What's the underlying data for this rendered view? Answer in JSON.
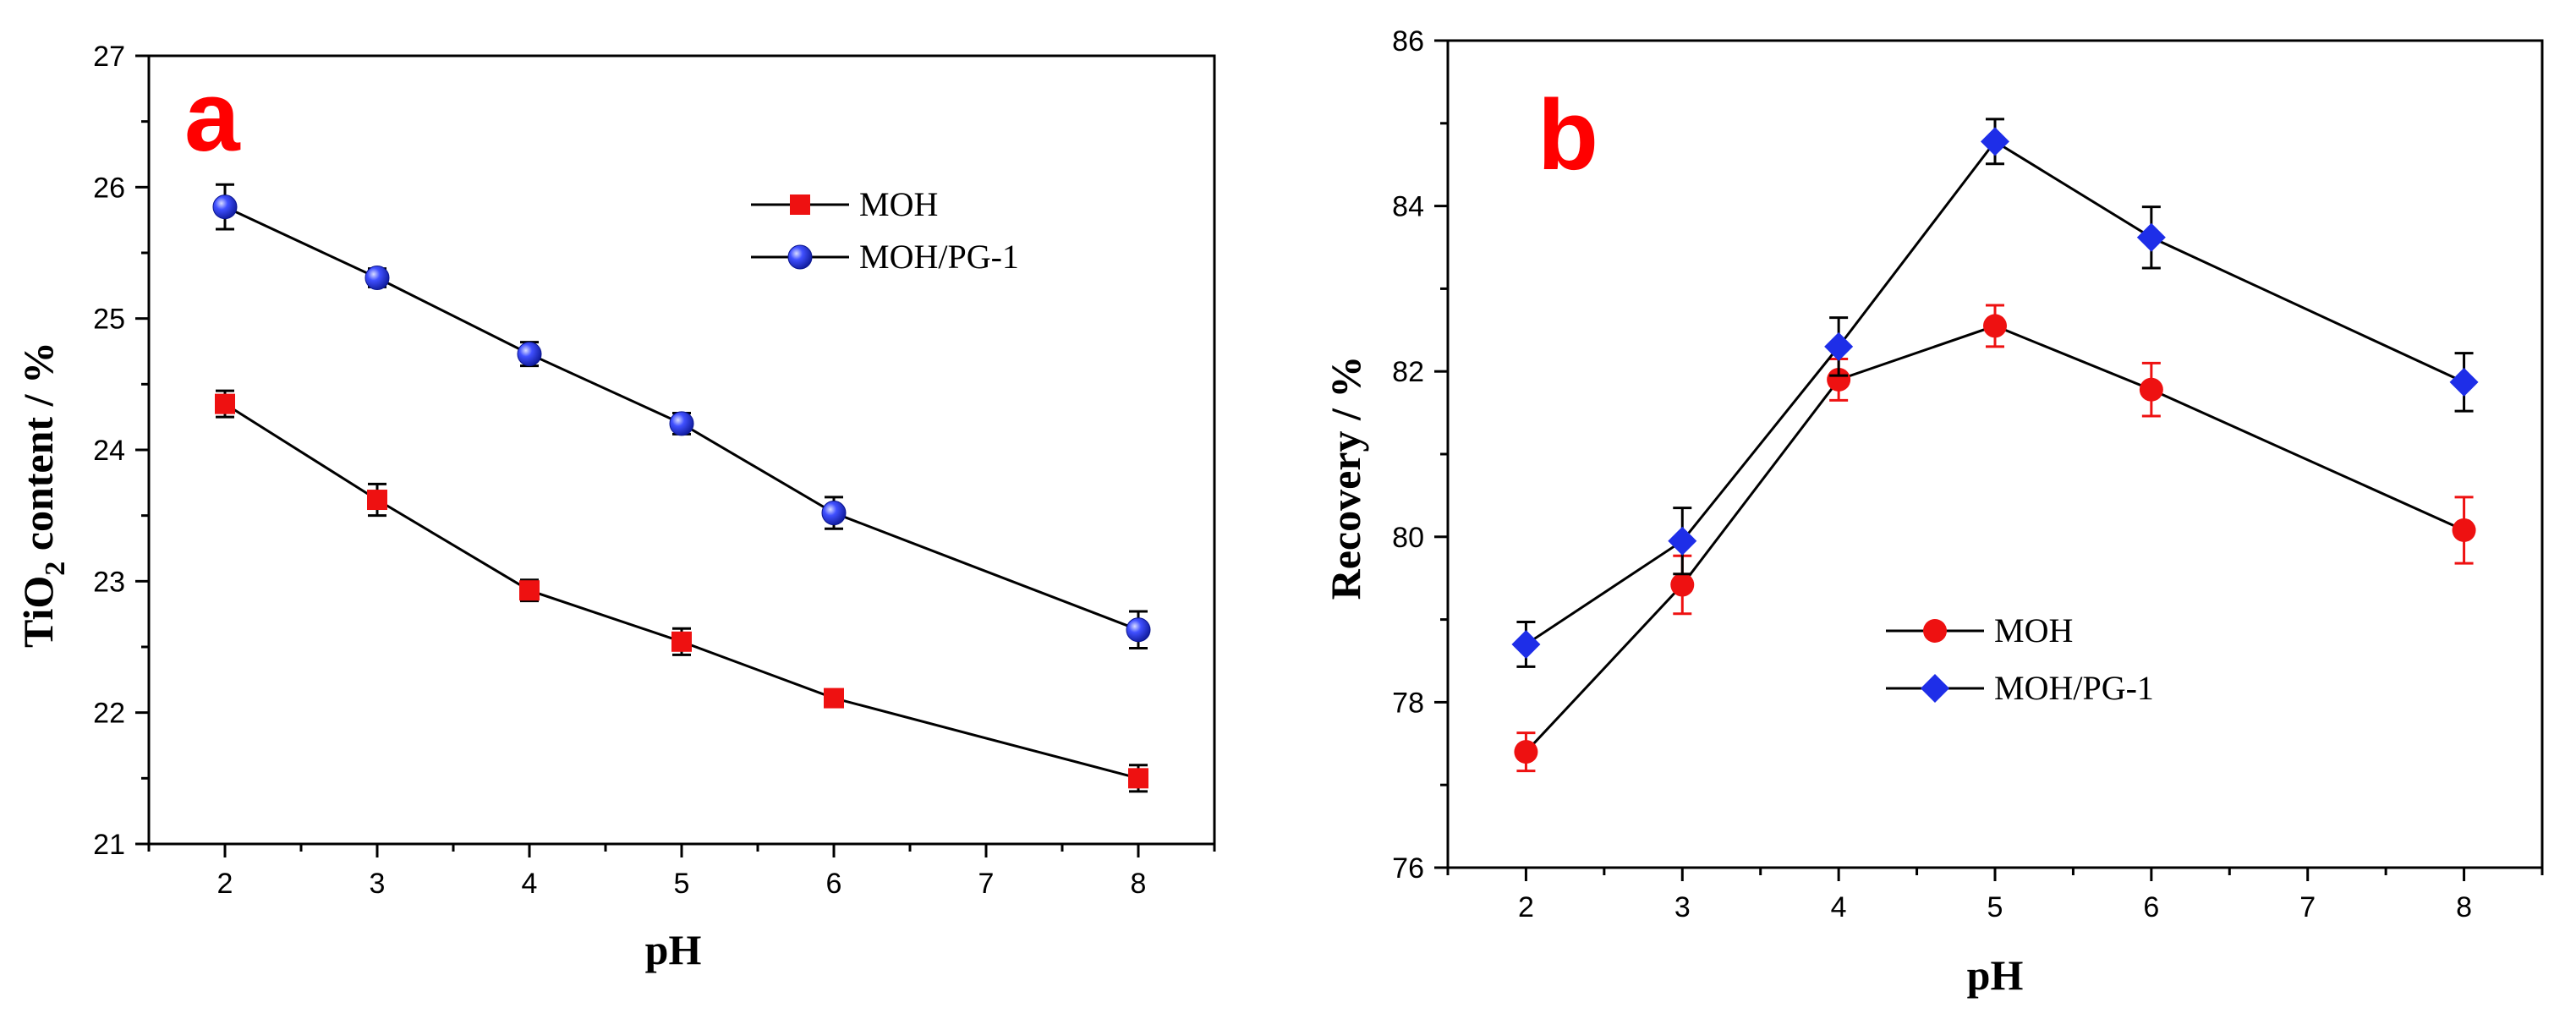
{
  "chart_data": [
    {
      "type": "line",
      "panel_label": "a",
      "xlabel": "pH",
      "ylabel_parts": [
        "TiO",
        "2",
        " content / %"
      ],
      "xlim": [
        1.5,
        8.5
      ],
      "ylim": [
        21,
        27
      ],
      "x_ticks": [
        2,
        3,
        4,
        5,
        6,
        7,
        8
      ],
      "y_ticks": [
        21,
        22,
        23,
        24,
        25,
        26,
        27
      ],
      "legend_position": "top-right",
      "series": [
        {
          "name": "MOH",
          "marker": "square",
          "color": "#ee1111",
          "error_color": "#000000",
          "x": [
            2,
            3,
            4,
            5,
            6,
            8
          ],
          "values": [
            24.35,
            23.62,
            22.93,
            22.54,
            22.11,
            21.5
          ],
          "errors": [
            0.1,
            0.12,
            0.08,
            0.1,
            0.06,
            0.1
          ]
        },
        {
          "name": "MOH/PG-1",
          "marker": "sphere",
          "color": "#1e2ee8",
          "error_color": "#000000",
          "x": [
            2,
            3,
            4,
            5,
            6,
            8
          ],
          "values": [
            25.85,
            25.31,
            24.73,
            24.2,
            23.52,
            22.63
          ],
          "errors": [
            0.17,
            0.07,
            0.09,
            0.08,
            0.12,
            0.14
          ]
        }
      ]
    },
    {
      "type": "line",
      "panel_label": "b",
      "xlabel": "pH",
      "ylabel": "Recovery / %",
      "xlim": [
        1.5,
        8.5
      ],
      "ylim": [
        76,
        86
      ],
      "x_ticks": [
        2,
        3,
        4,
        5,
        6,
        7,
        8
      ],
      "y_ticks": [
        76,
        78,
        80,
        82,
        84,
        86
      ],
      "legend_position": "bottom-right",
      "series": [
        {
          "name": "MOH",
          "marker": "circle",
          "color": "#ee1111",
          "error_color": "#ee1111",
          "x": [
            2,
            3,
            4,
            5,
            6,
            8
          ],
          "values": [
            77.4,
            79.42,
            81.9,
            82.55,
            81.78,
            80.08
          ],
          "errors": [
            0.23,
            0.35,
            0.25,
            0.25,
            0.32,
            0.4
          ]
        },
        {
          "name": "MOH/PG-1",
          "marker": "diamond",
          "color": "#1e2ee8",
          "error_color": "#000000",
          "x": [
            2,
            3,
            4,
            5,
            6,
            8
          ],
          "values": [
            78.7,
            79.95,
            82.3,
            84.78,
            83.62,
            81.87
          ],
          "errors": [
            0.27,
            0.4,
            0.35,
            0.27,
            0.37,
            0.35
          ]
        }
      ]
    }
  ]
}
